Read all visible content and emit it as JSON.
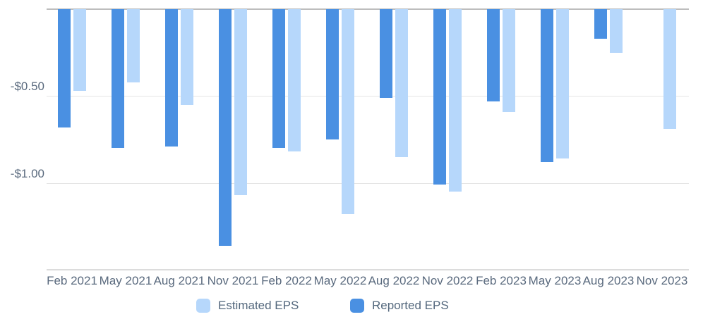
{
  "chart_data": {
    "type": "bar",
    "title": "",
    "xlabel": "",
    "ylabel": "",
    "categories": [
      "Feb 2021",
      "May 2021",
      "Aug 2021",
      "Nov 2021",
      "Feb 2022",
      "May 2022",
      "Aug 2022",
      "Nov 2022",
      "Feb 2023",
      "May 2023",
      "Aug 2023",
      "Nov 2023"
    ],
    "series": [
      {
        "name": "Estimated EPS",
        "color": "#b6d7fb",
        "values": [
          -0.47,
          -0.42,
          -0.55,
          -1.07,
          -0.82,
          -1.18,
          -0.85,
          -1.05,
          -0.59,
          -0.86,
          -0.25,
          -0.69
        ]
      },
      {
        "name": "Reported EPS",
        "color": "#4a90e2",
        "values": [
          -0.68,
          -0.8,
          -0.79,
          -1.36,
          -0.8,
          -0.75,
          -0.51,
          -1.01,
          -0.53,
          -0.88,
          -0.17,
          null
        ]
      }
    ],
    "y_ticks": [
      {
        "label": "-$0.50",
        "value": -0.5
      },
      {
        "label": "-$1.00",
        "value": -1.0
      }
    ],
    "ylim": [
      -1.5,
      0
    ],
    "grid": "horizontal",
    "legend_position": "bottom",
    "bar_group_order": [
      "Reported EPS",
      "Estimated EPS"
    ]
  },
  "colors": {
    "estimated": "#b6d7fb",
    "reported": "#4a90e2",
    "zero_line": "#bdbdbd",
    "gridline": "#e4e4e4",
    "axis_line": "#dcdcdc",
    "text": "#5a6a7e"
  }
}
